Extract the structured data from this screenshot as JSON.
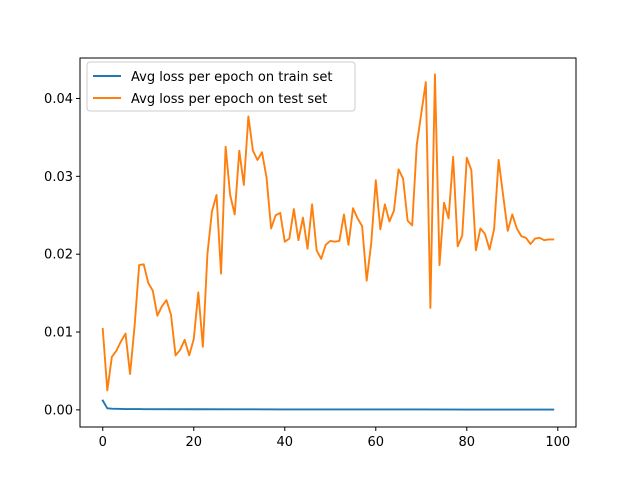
{
  "chart_data": {
    "type": "line",
    "title": "",
    "xlabel": "",
    "ylabel": "",
    "xlim": [
      -5,
      104
    ],
    "ylim": [
      -0.0022,
      0.0452
    ],
    "xticks": [
      0,
      20,
      40,
      60,
      80,
      100
    ],
    "yticks": [
      0.0,
      0.01,
      0.02,
      0.03,
      0.04
    ],
    "xtick_labels": [
      "0",
      "20",
      "40",
      "60",
      "80",
      "100"
    ],
    "ytick_labels": [
      "0.00",
      "0.01",
      "0.02",
      "0.03",
      "0.04"
    ],
    "grid": false,
    "legend_position": "top-left",
    "series": [
      {
        "name": "Avg loss per epoch on train set",
        "color": "#1f77b4",
        "x": [
          0,
          1,
          2,
          3,
          4,
          5,
          6,
          7,
          8,
          9,
          10,
          20,
          30,
          40,
          50,
          60,
          70,
          80,
          90,
          99
        ],
        "y": [
          0.0012,
          0.0002,
          0.00015,
          0.00013,
          0.00012,
          0.00011,
          0.0001,
          0.0001,
          0.0001,
          9e-05,
          9e-05,
          8e-05,
          7e-05,
          6e-05,
          6e-05,
          5e-05,
          5e-05,
          4e-05,
          4e-05,
          4e-05
        ]
      },
      {
        "name": "Avg loss per epoch on test set",
        "color": "#ff7f0e",
        "x": [
          0,
          1,
          2,
          3,
          4,
          5,
          6,
          7,
          8,
          9,
          10,
          11,
          12,
          13,
          14,
          15,
          16,
          17,
          18,
          19,
          20,
          21,
          22,
          23,
          24,
          25,
          26,
          27,
          28,
          29,
          30,
          31,
          32,
          33,
          34,
          35,
          36,
          37,
          38,
          39,
          40,
          41,
          42,
          43,
          44,
          45,
          46,
          47,
          48,
          49,
          50,
          51,
          52,
          53,
          54,
          55,
          56,
          57,
          58,
          59,
          60,
          61,
          62,
          63,
          64,
          65,
          66,
          67,
          68,
          69,
          70,
          71,
          72,
          73,
          74,
          75,
          76,
          77,
          78,
          79,
          80,
          81,
          82,
          83,
          84,
          85,
          86,
          87,
          88,
          89,
          90,
          91,
          92,
          93,
          94,
          95,
          96,
          97,
          98,
          99
        ],
        "y": [
          0.0104,
          0.0025,
          0.0068,
          0.0076,
          0.0088,
          0.0098,
          0.0046,
          0.0108,
          0.0186,
          0.0187,
          0.0163,
          0.0153,
          0.0121,
          0.0133,
          0.0141,
          0.0122,
          0.007,
          0.0077,
          0.009,
          0.007,
          0.0091,
          0.0151,
          0.0081,
          0.02,
          0.0255,
          0.0276,
          0.0175,
          0.0338,
          0.0276,
          0.0251,
          0.0333,
          0.0289,
          0.0377,
          0.0333,
          0.0321,
          0.0331,
          0.0298,
          0.0233,
          0.025,
          0.0253,
          0.0216,
          0.022,
          0.0258,
          0.0218,
          0.0247,
          0.0207,
          0.0264,
          0.0205,
          0.0194,
          0.0212,
          0.0217,
          0.0216,
          0.0217,
          0.0251,
          0.0212,
          0.0259,
          0.0246,
          0.0236,
          0.0166,
          0.0214,
          0.0295,
          0.0232,
          0.0264,
          0.0242,
          0.0256,
          0.0309,
          0.0297,
          0.0243,
          0.0237,
          0.034,
          0.0381,
          0.0421,
          0.0131,
          0.0431,
          0.0186,
          0.0266,
          0.0246,
          0.0325,
          0.021,
          0.0224,
          0.0324,
          0.0308,
          0.0205,
          0.0233,
          0.0226,
          0.0206,
          0.0232,
          0.0321,
          0.0275,
          0.023,
          0.0251,
          0.0233,
          0.0223,
          0.0221,
          0.0213,
          0.022,
          0.0221,
          0.0218,
          0.0219,
          0.0219
        ]
      }
    ]
  }
}
